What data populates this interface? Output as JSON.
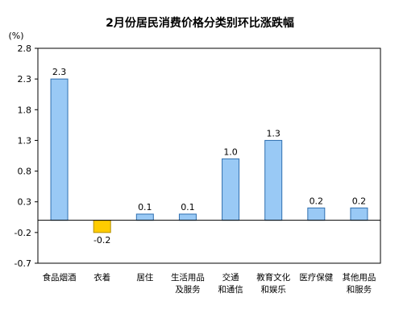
{
  "chart_data": {
    "type": "bar",
    "title": "2月份居民消费价格分类别环比涨跌幅",
    "ylabel": "(%)",
    "xlabel": "",
    "ylim": [
      -0.7,
      2.8
    ],
    "yticks": [
      "2.8",
      "2.3",
      "1.8",
      "1.3",
      "0.8",
      "0.3",
      "-0.2",
      "-0.7"
    ],
    "grid": false,
    "categories": [
      [
        "食品烟酒"
      ],
      [
        "衣着"
      ],
      [
        "居住"
      ],
      [
        "生活用品",
        "及服务"
      ],
      [
        "交通",
        "和通信"
      ],
      [
        "教育文化",
        "和娱乐"
      ],
      [
        "医疗保健"
      ],
      [
        "其他用品",
        "和服务"
      ]
    ],
    "values": [
      2.3,
      -0.2,
      0.1,
      0.1,
      1.0,
      1.3,
      0.2,
      0.2
    ],
    "value_labels": [
      "2.3",
      "-0.2",
      "0.1",
      "0.1",
      "1.0",
      "1.3",
      "0.2",
      "0.2"
    ],
    "colors": {
      "positive_fill": "#99c9f5",
      "positive_stroke": "#2f6fb0",
      "negative_fill": "#ffcc00",
      "negative_stroke": "#b38f00",
      "axis": "#000000"
    }
  }
}
